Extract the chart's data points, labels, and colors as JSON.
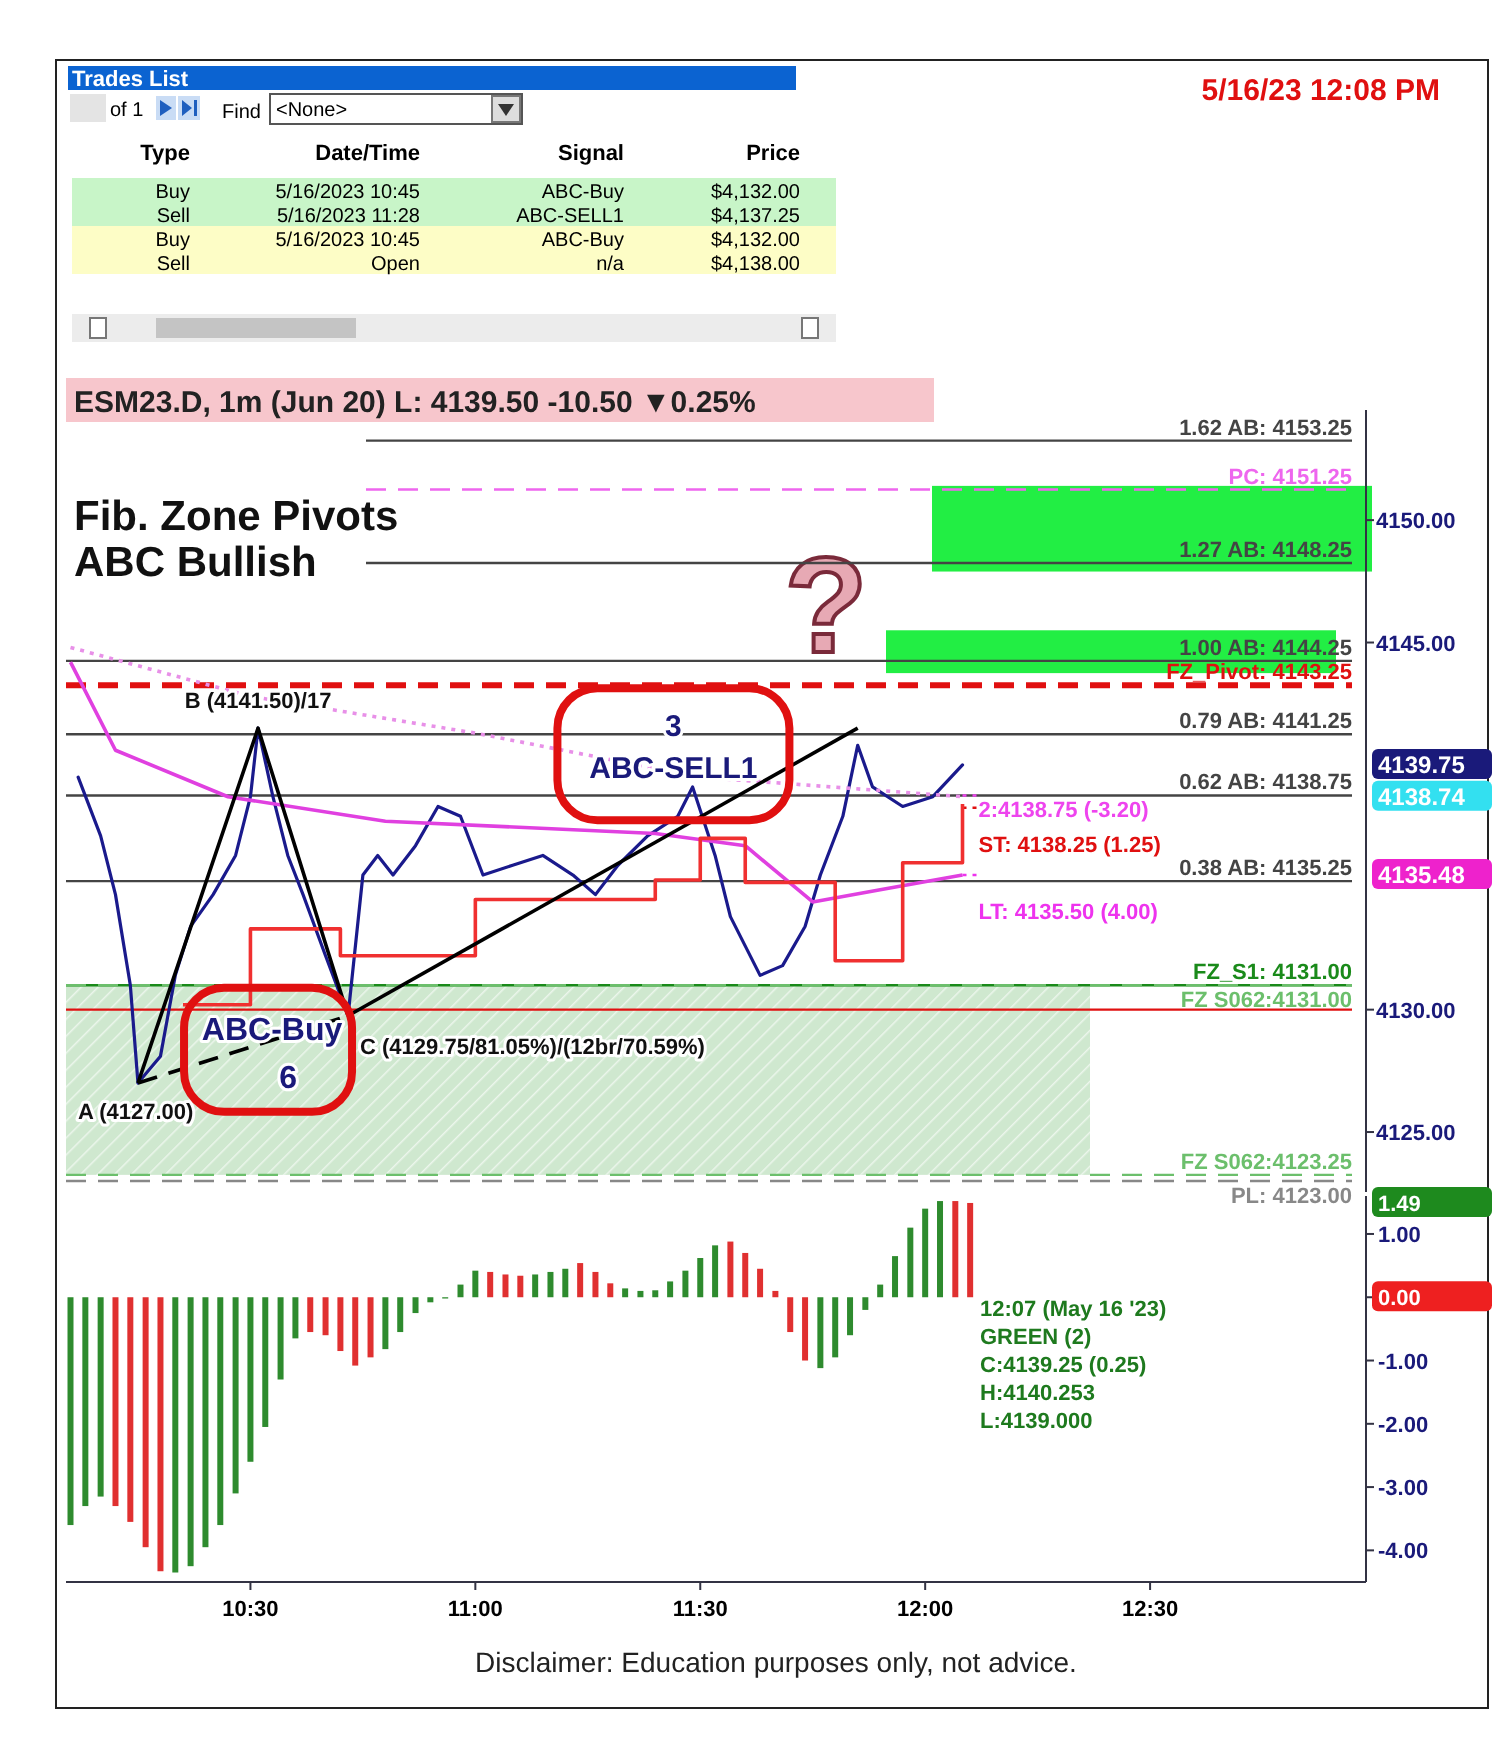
{
  "chart_data": [
    {
      "type": "other",
      "title": "Trades List",
      "subtitle": "5/16/23 12:08 PM",
      "annotations": [
        "of 1",
        "Find",
        "<None>",
        "Type",
        "Date/Time",
        "Signal",
        "Price",
        "Buy",
        "5/16/2023 10:45",
        "ABC-Buy",
        "$4,132.00",
        "Sell",
        "5/16/2023 11:28",
        "ABC-SELL1",
        "$4,137.25",
        "Buy",
        "5/16/2023 10:45",
        "ABC-Buy",
        "$4,132.00",
        "Sell",
        "Open",
        "n/a",
        "$4,138.00"
      ]
    },
    {
      "type": "line",
      "title": "Fib. Zone Pivots",
      "subtitle": "ABC Bullish",
      "tick_labels": "y",
      "xlim": [
        10.09,
        12.98
      ],
      "ylim": [
        4122.55,
        4154.5
      ],
      "yticks": [
        {
          "value": 4125,
          "label": "4125.00"
        },
        {
          "value": 4130,
          "label": "4130.00"
        },
        {
          "value": 4145,
          "label": "4145.00"
        },
        {
          "value": 4150,
          "label": "4150.00"
        }
      ],
      "series": [
        {
          "color": "#1a1a8c",
          "x": [
            10.117,
            10.167,
            10.2,
            10.233,
            10.25,
            10.3,
            10.333,
            10.367,
            10.417,
            10.467,
            10.5,
            10.517,
            10.55,
            10.583,
            10.617,
            10.667,
            10.717,
            10.75,
            10.783,
            10.817,
            10.867,
            10.917,
            10.967,
            11.017,
            11.083,
            11.15,
            11.217,
            11.267,
            11.317,
            11.383,
            11.45,
            11.483,
            11.533,
            11.567,
            11.633,
            11.683,
            11.733,
            11.767,
            11.817,
            11.85,
            11.883,
            11.95,
            12.017,
            12.083
          ],
          "values": [
            4139.5,
            4137.1,
            4134.7,
            4131,
            4127,
            4128.1,
            4131.4,
            4133.4,
            4134.7,
            4136.3,
            4138.7,
            4141.5,
            4138.7,
            4136.3,
            4134.7,
            4132.2,
            4129.75,
            4135.5,
            4136.3,
            4135.5,
            4136.7,
            4138.3,
            4137.9,
            4135.5,
            4135.9,
            4136.3,
            4135.5,
            4134.7,
            4135.9,
            4137.1,
            4137.9,
            4139.1,
            4136.3,
            4133.8,
            4131.4,
            4131.8,
            4133.4,
            4135.5,
            4137.9,
            4140.8,
            4139.1,
            4138.3,
            4138.7,
            4140
          ]
        },
        {
          "color": "#e040e0",
          "x": [
            10.1,
            10.2,
            10.45,
            10.8,
            11.4,
            11.6,
            11.75,
            11.9,
            12.083
          ],
          "values": [
            4144.2,
            4140.6,
            4138.7,
            4137.7,
            4137.2,
            4136.7,
            4134.4,
            4134.9,
            4135.5
          ]
        },
        {
          "color": "#e890e8",
          "line_style": "dotted",
          "x": [
            10.1,
            10.5,
            11.0,
            11.5,
            12.083
          ],
          "values": [
            4144.8,
            4142.8,
            4141.3,
            4139.5,
            4138.7
          ]
        },
        {
          "type": "step",
          "color": "#f03030",
          "x": [
            10.35,
            10.5,
            10.7,
            11.0,
            11.4,
            11.5,
            11.6,
            11.8,
            11.95,
            12.083
          ],
          "values": [
            4130.2,
            4133.3,
            4132.2,
            4134.5,
            4135.3,
            4137.0,
            4135.2,
            4132.0,
            4136.0,
            4138.4
          ]
        },
        {
          "color": "#000000",
          "x": [
            10.25,
            10.517,
            10.717
          ],
          "values": [
            4127,
            4141.5,
            4129.75
          ]
        },
        {
          "color": "#000000",
          "x": [
            10.717,
            11.85
          ],
          "values": [
            4129.75,
            4141.5
          ]
        },
        {
          "color": "#000000",
          "line_style": "dashed",
          "x": [
            10.25,
            10.717
          ],
          "values": [
            4127,
            4129.75
          ]
        }
      ],
      "bands": [
        {
          "axis": "y",
          "from": 4123.25,
          "to": 4131,
          "color": "#cfe8cf"
        },
        {
          "axis": "y",
          "from": 4147.9,
          "to": 4151.4,
          "color": "#22ee44"
        },
        {
          "axis": "y",
          "from": 4143.75,
          "to": 4145.5,
          "color": "#22ee44"
        }
      ],
      "ref_lines": [
        {
          "axis": "y",
          "value": 4153.25,
          "label": "1.62 AB: 4153.25",
          "color": "#444444",
          "line_style": "solid"
        },
        {
          "axis": "y",
          "value": 4151.25,
          "label": "PC: 4151.25",
          "color": "#ee66ee",
          "line_style": "dashed"
        },
        {
          "axis": "y",
          "value": 4148.25,
          "label": "1.27 AB: 4148.25",
          "color": "#444444",
          "line_style": "solid"
        },
        {
          "axis": "y",
          "value": 4144.25,
          "label": "1.00 AB: 4144.25",
          "color": "#444444",
          "line_style": "solid"
        },
        {
          "axis": "y",
          "value": 4143.25,
          "label": "FZ_Pivot: 4143.25",
          "color": "#e01010",
          "line_style": "dashed"
        },
        {
          "axis": "y",
          "value": 4141.25,
          "label": "0.79 AB: 4141.25",
          "color": "#444444",
          "line_style": "solid"
        },
        {
          "axis": "y",
          "value": 4138.75,
          "label": "0.62 AB: 4138.75",
          "color": "#444444",
          "line_style": "solid"
        },
        {
          "axis": "y",
          "value": 4138.75,
          "label": "2:4138.75 (-3.20)",
          "color": "#ee44ee",
          "line_style": "dotted"
        },
        {
          "axis": "y",
          "value": 4138.25,
          "label": "ST: 4138.25 (1.25)",
          "color": "#e01010",
          "line_style": "dotted"
        },
        {
          "axis": "y",
          "value": 4135.25,
          "label": "0.38 AB: 4135.25",
          "color": "#444444",
          "line_style": "solid"
        },
        {
          "axis": "y",
          "value": 4135.5,
          "label": "LT: 4135.50 (4.00)",
          "color": "#ee33ee",
          "line_style": "dotted"
        },
        {
          "axis": "y",
          "value": 4131,
          "label": "FZ_S1: 4131.00",
          "color": "#1a8a1a",
          "line_style": "solid"
        },
        {
          "axis": "y",
          "value": 4131,
          "label": "FZ S062:4131.00",
          "color": "#6cbf6c",
          "line_style": "dashed"
        },
        {
          "axis": "y",
          "value": 4130,
          "label": null,
          "color": "#e01010",
          "line_style": "solid"
        },
        {
          "axis": "y",
          "value": 4123.25,
          "label": "FZ S062:4123.25",
          "color": "#6cbf6c",
          "line_style": "dashed"
        },
        {
          "axis": "y",
          "value": 4123,
          "label": "PL: 4123.00",
          "color": "#888888",
          "line_style": "dashed"
        }
      ],
      "annotations": [
        "ESM23.D, 1m (Jun 20) L: 4139.50 -10.50 ▼0.25%",
        "?",
        {
          "text": "A (4127.00)",
          "x": 10.25,
          "y": 4127
        },
        {
          "text": "B (4141.50)/17",
          "x": 10.517,
          "y": 4141.5
        },
        {
          "text": "C (4129.75/81.05%)/(12br/70.59%)",
          "x": 10.717,
          "y": 4129.75
        },
        {
          "text": "ABC-Buy",
          "x": 10.717,
          "y": 4129.75
        },
        {
          "text": "6",
          "x": 10.717,
          "y": 4129.75
        },
        {
          "text": "3",
          "x": 11.467,
          "y": 4137.25
        },
        {
          "text": "ABC-SELL1",
          "x": 11.467,
          "y": 4137.25
        },
        "4139.75",
        "4138.74",
        "4135.48"
      ]
    },
    {
      "type": "bar",
      "xlim": [
        10.09,
        12.98
      ],
      "xticks": [
        {
          "value": 10.5,
          "label": "10:30"
        },
        {
          "value": 11,
          "label": "11:00"
        },
        {
          "value": 11.5,
          "label": "11:30"
        },
        {
          "value": 12,
          "label": "12:00"
        },
        {
          "value": 12.5,
          "label": "12:30"
        }
      ],
      "ylim": [
        -4.5,
        1.6
      ],
      "yticks": [
        {
          "value": 1,
          "label": "1.00"
        },
        {
          "value": 0,
          "label": "0.00"
        },
        {
          "value": -1,
          "label": "-1.00"
        },
        {
          "value": -2,
          "label": "-2.00"
        },
        {
          "value": -3,
          "label": "-3.00"
        },
        {
          "value": -4,
          "label": "-4.00"
        }
      ],
      "x": [
        10.1,
        10.133,
        10.167,
        10.2,
        10.233,
        10.267,
        10.3,
        10.333,
        10.367,
        10.4,
        10.433,
        10.467,
        10.5,
        10.533,
        10.567,
        10.6,
        10.633,
        10.667,
        10.7,
        10.733,
        10.767,
        10.8,
        10.833,
        10.867,
        10.9,
        10.933,
        10.967,
        11.0,
        11.033,
        11.067,
        11.1,
        11.133,
        11.167,
        11.2,
        11.233,
        11.267,
        11.3,
        11.333,
        11.367,
        11.4,
        11.433,
        11.467,
        11.5,
        11.533,
        11.567,
        11.6,
        11.633,
        11.667,
        11.7,
        11.733,
        11.767,
        11.8,
        11.833,
        11.867,
        11.9,
        11.933,
        11.967,
        12.0,
        12.033,
        12.067,
        12.1
      ],
      "values": [
        -3.6,
        -3.3,
        -3.15,
        -3.3,
        -3.55,
        -3.95,
        -4.33,
        -4.35,
        -4.25,
        -3.95,
        -3.6,
        -3.1,
        -2.6,
        -2.05,
        -1.3,
        -0.65,
        -0.55,
        -0.6,
        -0.85,
        -1.08,
        -0.95,
        -0.82,
        -0.55,
        -0.25,
        -0.08,
        -0.02,
        0.2,
        0.42,
        0.4,
        0.36,
        0.34,
        0.36,
        0.4,
        0.45,
        0.54,
        0.4,
        0.22,
        0.14,
        0.1,
        0.11,
        0.25,
        0.42,
        0.62,
        0.82,
        0.88,
        0.7,
        0.45,
        0.1,
        -0.55,
        -1.0,
        -1.12,
        -0.95,
        -0.6,
        -0.2,
        0.2,
        0.65,
        1.1,
        1.4,
        1.52,
        1.52,
        1.49
      ],
      "colors": [
        "#2e8b2e",
        "#2e8b2e",
        "#2e8b2e",
        "#e03030",
        "#e03030",
        "#e03030",
        "#e03030",
        "#2e8b2e",
        "#2e8b2e",
        "#2e8b2e",
        "#2e8b2e",
        "#2e8b2e",
        "#2e8b2e",
        "#2e8b2e",
        "#2e8b2e",
        "#2e8b2e",
        "#e03030",
        "#e03030",
        "#e03030",
        "#e03030",
        "#e03030",
        "#2e8b2e",
        "#2e8b2e",
        "#2e8b2e",
        "#2e8b2e",
        "#2e8b2e",
        "#2e8b2e",
        "#2e8b2e",
        "#e03030",
        "#e03030",
        "#e03030",
        "#2e8b2e",
        "#2e8b2e",
        "#2e8b2e",
        "#e03030",
        "#e03030",
        "#e03030",
        "#2e8b2e",
        "#2e8b2e",
        "#2e8b2e",
        "#2e8b2e",
        "#2e8b2e",
        "#2e8b2e",
        "#2e8b2e",
        "#e03030",
        "#e03030",
        "#e03030",
        "#e03030",
        "#e03030",
        "#e03030",
        "#2e8b2e",
        "#2e8b2e",
        "#2e8b2e",
        "#2e8b2e",
        "#2e8b2e",
        "#2e8b2e",
        "#2e8b2e",
        "#2e8b2e",
        "#2e8b2e",
        "#e03030",
        "#e03030"
      ],
      "annotations": [
        "12:07 (May 16 '23)",
        "GREEN (2)",
        "C:4139.25 (0.25)",
        "H:4140.253",
        "L:4139.000",
        "Disclaimer: Education purposes only, not advice.",
        "1.49"
      ]
    }
  ]
}
